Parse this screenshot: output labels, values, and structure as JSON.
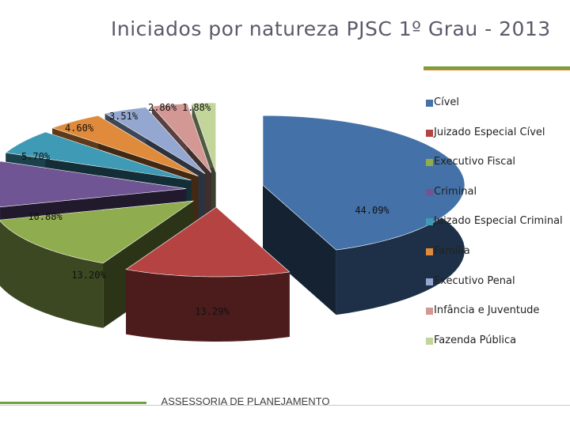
{
  "slide": {
    "title": "Iniciados por natureza PJSC 1º Grau - 2013",
    "footer": "ASSESSORIA DE PLANEJAMENTO"
  },
  "chart_data": {
    "type": "pie",
    "title": "Iniciados por natureza PJSC 1º Grau - 2013",
    "legend_position": "right",
    "slices": [
      {
        "name": "Cível",
        "value": 44.09,
        "label": "44.09%",
        "color": "#4472a8"
      },
      {
        "name": "Juizado Especial Cível",
        "value": 13.29,
        "label": "13.29%",
        "color": "#b54342"
      },
      {
        "name": "Executivo Fiscal",
        "value": 13.2,
        "label": "13.20%",
        "color": "#8fac4e"
      },
      {
        "name": "Criminal",
        "value": 10.88,
        "label": "10.88%",
        "color": "#6f5593"
      },
      {
        "name": "Juizado Especial Criminal",
        "value": 5.7,
        "label": "5.70%",
        "color": "#3e9ab5"
      },
      {
        "name": "Família",
        "value": 4.6,
        "label": "4.60%",
        "color": "#e08a3b"
      },
      {
        "name": "Executivo Penal",
        "value": 3.51,
        "label": "3.51%",
        "color": "#93a7d0"
      },
      {
        "name": "Infância e Juventude",
        "value": 2.86,
        "label": "2.86%",
        "color": "#d39894"
      },
      {
        "name": "Fazenda Pública",
        "value": 1.88,
        "label": "1.88%",
        "color": "#c2d69b"
      }
    ]
  }
}
